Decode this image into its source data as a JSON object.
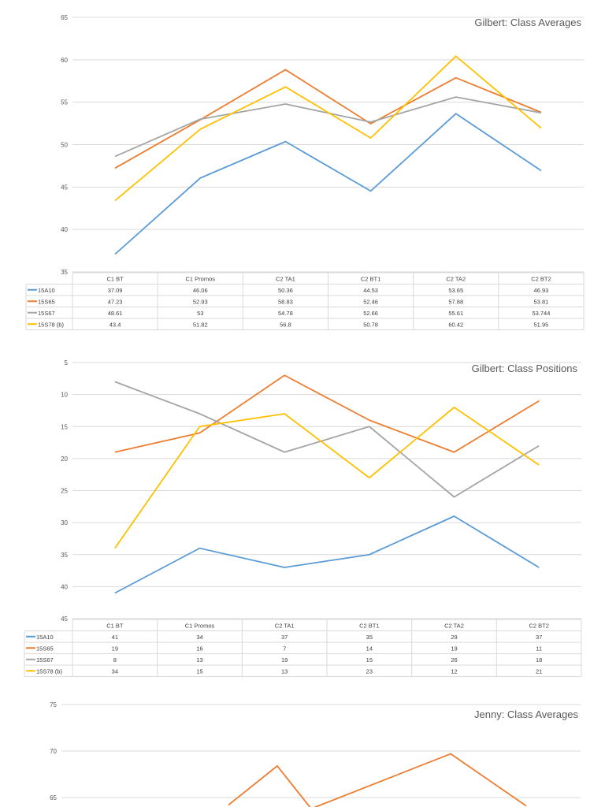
{
  "chart_data": [
    {
      "type": "line",
      "title": "Gilbert: Class Averages",
      "categories": [
        "C1 BT",
        "C1 Promos",
        "C2 TA1",
        "C2 BT1",
        "C2 TA2",
        "C2 BT2"
      ],
      "ylim": [
        35,
        65
      ],
      "yticks": [
        "35",
        "40",
        "45",
        "50",
        "55",
        "60",
        "65"
      ],
      "inverted": false,
      "grid": true,
      "legend": "data-table",
      "series": [
        {
          "name": "15A10",
          "color": "#5b9bd5",
          "values": [
            37.09,
            46.06,
            50.36,
            44.53,
            53.65,
            46.93
          ],
          "labels": [
            "37.09",
            "46.06",
            "50.36",
            "44.53",
            "53.65",
            "46.93"
          ]
        },
        {
          "name": "15S65",
          "color": "#ed7d31",
          "values": [
            47.23,
            52.93,
            58.83,
            52.46,
            57.88,
            53.81
          ],
          "labels": [
            "47.23",
            "52.93",
            "58.83",
            "52.46",
            "57.88",
            "53.81"
          ]
        },
        {
          "name": "15S67",
          "color": "#a5a5a5",
          "values": [
            48.61,
            53,
            54.78,
            52.66,
            55.61,
            53.744
          ],
          "labels": [
            "48.61",
            "53",
            "54.78",
            "52.66",
            "55.61",
            "53.744"
          ]
        },
        {
          "name": "15S78 (b)",
          "color": "#ffc000",
          "values": [
            43.4,
            51.82,
            56.8,
            50.78,
            60.42,
            51.95
          ],
          "labels": [
            "43.4",
            "51.82",
            "56.8",
            "50.78",
            "60.42",
            "51.95"
          ]
        }
      ]
    },
    {
      "type": "line",
      "title": "Gilbert: Class Positions",
      "categories": [
        "C1 BT",
        "C1 Promos",
        "C2 TA1",
        "C2 BT1",
        "C2 TA2",
        "C2 BT2"
      ],
      "ylim": [
        5,
        45
      ],
      "yticks": [
        "5",
        "10",
        "15",
        "20",
        "25",
        "30",
        "35",
        "40",
        "45"
      ],
      "inverted": true,
      "grid": true,
      "legend": "data-table",
      "series": [
        {
          "name": "15A10",
          "color": "#5b9bd5",
          "values": [
            41,
            34,
            37,
            35,
            29,
            37
          ],
          "labels": [
            "41",
            "34",
            "37",
            "35",
            "29",
            "37"
          ]
        },
        {
          "name": "15S65",
          "color": "#ed7d31",
          "values": [
            19,
            16,
            7,
            14,
            19,
            11
          ],
          "labels": [
            "19",
            "16",
            "7",
            "14",
            "19",
            "11"
          ]
        },
        {
          "name": "15S67",
          "color": "#a5a5a5",
          "values": [
            8,
            13,
            19,
            15,
            26,
            18
          ],
          "labels": [
            "8",
            "13",
            "19",
            "15",
            "26",
            "18"
          ]
        },
        {
          "name": "15S78 (b)",
          "color": "#ffc000",
          "values": [
            34,
            15,
            13,
            23,
            12,
            21
          ],
          "labels": [
            "34",
            "15",
            "13",
            "23",
            "12",
            "21"
          ]
        }
      ]
    },
    {
      "type": "line",
      "title": "Jenny: Class Averages",
      "ylim": [
        65,
        75
      ],
      "yticks": [
        "65",
        "70",
        "75"
      ],
      "inverted": false,
      "grid": true,
      "partial": true,
      "series": [
        {
          "color": "#ed7d31",
          "values": [
            64.2,
            68.4,
            63.8,
            69.7,
            64.1
          ]
        }
      ]
    }
  ]
}
